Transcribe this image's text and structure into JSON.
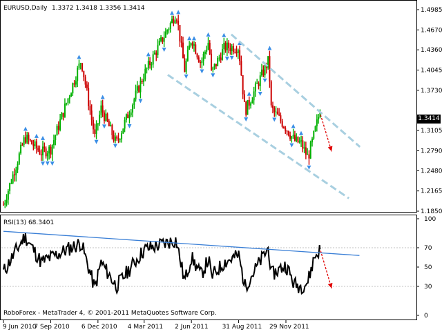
{
  "header": {
    "symbol": "EURUSD,Daily",
    "ohlc": "1.3372 1.3418 1.3356 1.3414"
  },
  "price_tag": "1.3414",
  "rsi_header": "RSI(13) 68.3401",
  "footer": "RoboForex - MetaTrader 4, © 2001-2011 MetaQuotes Software Corp.",
  "colors": {
    "bull": "#00b000",
    "bear": "#cc0000",
    "arrow": "#3a8ee6",
    "channel": "#a8cfe0",
    "trend": "#3a7fd6",
    "forecast": "#e00000"
  },
  "chart_data": [
    {
      "type": "candlestick",
      "title": "EURUSD,Daily",
      "y_ticks": [
        "1.4985",
        "1.4670",
        "1.4360",
        "1.4045",
        "1.3730",
        "1.3105",
        "1.2790",
        "1.2480",
        "1.2165",
        "1.1850"
      ],
      "ylim": [
        1.185,
        1.4985
      ],
      "grid": false,
      "last_price": 1.3414,
      "x_ticks": [
        "9 Jun 2010",
        "7 Sep 2010",
        "6 Dec 2010",
        "4 Mar 2011",
        "2 Jun 2011",
        "31 Aug 2011",
        "29 Nov 2011"
      ],
      "anchors": [
        {
          "date": "9 Jun 2010",
          "price": 1.195
        },
        {
          "date": "20 Jul 2010",
          "price": 1.3
        },
        {
          "date": "20 Aug 2010",
          "price": 1.276
        },
        {
          "date": "7 Sep 2010",
          "price": 1.282
        },
        {
          "date": "4 Nov 2010",
          "price": 1.42
        },
        {
          "date": "30 Nov 2010",
          "price": 1.3
        },
        {
          "date": "12 Dec 2010",
          "price": 1.345
        },
        {
          "date": "10 Jan 2011",
          "price": 1.29
        },
        {
          "date": "4 Mar 2011",
          "price": 1.398
        },
        {
          "date": "4 May 2011",
          "price": 1.494
        },
        {
          "date": "20 May 2011",
          "price": 1.405
        },
        {
          "date": "2 Jun 2011",
          "price": 1.455
        },
        {
          "date": "20 Jun 2011",
          "price": 1.415
        },
        {
          "date": "5 Jul 2011",
          "price": 1.45
        },
        {
          "date": "10 Jul 2011",
          "price": 1.4
        },
        {
          "date": "4 Aug 2011",
          "price": 1.44
        },
        {
          "date": "31 Aug 2011",
          "price": 1.44
        },
        {
          "date": "12 Sep 2011",
          "price": 1.34
        },
        {
          "date": "27 Oct 2011",
          "price": 1.42
        },
        {
          "date": "1 Nov 2011",
          "price": 1.345
        },
        {
          "date": "29 Nov 2011",
          "price": 1.315
        },
        {
          "date": "15 Dec 2011",
          "price": 1.295
        },
        {
          "date": "28 Dec 2011",
          "price": 1.29
        },
        {
          "date": "10 Jan 2012",
          "price": 1.268
        },
        {
          "date": "22 Jan 2012",
          "price": 1.305
        },
        {
          "date": "2 Feb 2012",
          "price": 1.3414
        }
      ],
      "channel_upper": [
        [
          "17 Aug 2011",
          1.46
        ],
        [
          "18 Apr 2012",
          1.285
        ]
      ],
      "channel_lower": [
        [
          "18 Apr 2011",
          1.397
        ],
        [
          "28 Mar 2012",
          1.205
        ]
      ],
      "forecast_arrow": [
        [
          "3 Feb 2012",
          1.335
        ],
        [
          "24 Feb 2012",
          1.278
        ]
      ]
    },
    {
      "type": "line",
      "title": "RSI(13) 68.3401",
      "y_ticks": [
        100,
        70,
        50,
        30,
        0
      ],
      "ylim": [
        0,
        100
      ],
      "last_value": 68.3401,
      "levels": [
        70,
        30
      ],
      "anchors": [
        {
          "date": "9 Jun 2010",
          "value": 45
        },
        {
          "date": "20 Jul 2010",
          "value": 82
        },
        {
          "date": "20 Aug 2010",
          "value": 55
        },
        {
          "date": "7 Sep 2010",
          "value": 60
        },
        {
          "date": "4 Nov 2010",
          "value": 75
        },
        {
          "date": "30 Nov 2010",
          "value": 28
        },
        {
          "date": "12 Dec 2010",
          "value": 55
        },
        {
          "date": "10 Jan 2011",
          "value": 30
        },
        {
          "date": "4 Mar 2011",
          "value": 68
        },
        {
          "date": "4 May 2011",
          "value": 78
        },
        {
          "date": "20 May 2011",
          "value": 35
        },
        {
          "date": "2 Jun 2011",
          "value": 60
        },
        {
          "date": "20 Jun 2011",
          "value": 42
        },
        {
          "date": "5 Jul 2011",
          "value": 58
        },
        {
          "date": "10 Jul 2011",
          "value": 40
        },
        {
          "date": "4 Aug 2011",
          "value": 55
        },
        {
          "date": "31 Aug 2011",
          "value": 62
        },
        {
          "date": "12 Sep 2011",
          "value": 30
        },
        {
          "date": "27 Oct 2011",
          "value": 70
        },
        {
          "date": "1 Nov 2011",
          "value": 42
        },
        {
          "date": "29 Nov 2011",
          "value": 52
        },
        {
          "date": "15 Dec 2011",
          "value": 32
        },
        {
          "date": "28 Dec 2011",
          "value": 30
        },
        {
          "date": "10 Jan 2012",
          "value": 35
        },
        {
          "date": "22 Jan 2012",
          "value": 60
        },
        {
          "date": "2 Feb 2012",
          "value": 68.3401
        }
      ],
      "trend_line": [
        [
          "9 Jun 2010",
          87
        ],
        [
          "17 Apr 2012",
          62
        ]
      ],
      "forecast_arrow": [
        [
          "3 Feb 2012",
          67
        ],
        [
          "24 Feb 2012",
          28
        ]
      ]
    }
  ]
}
